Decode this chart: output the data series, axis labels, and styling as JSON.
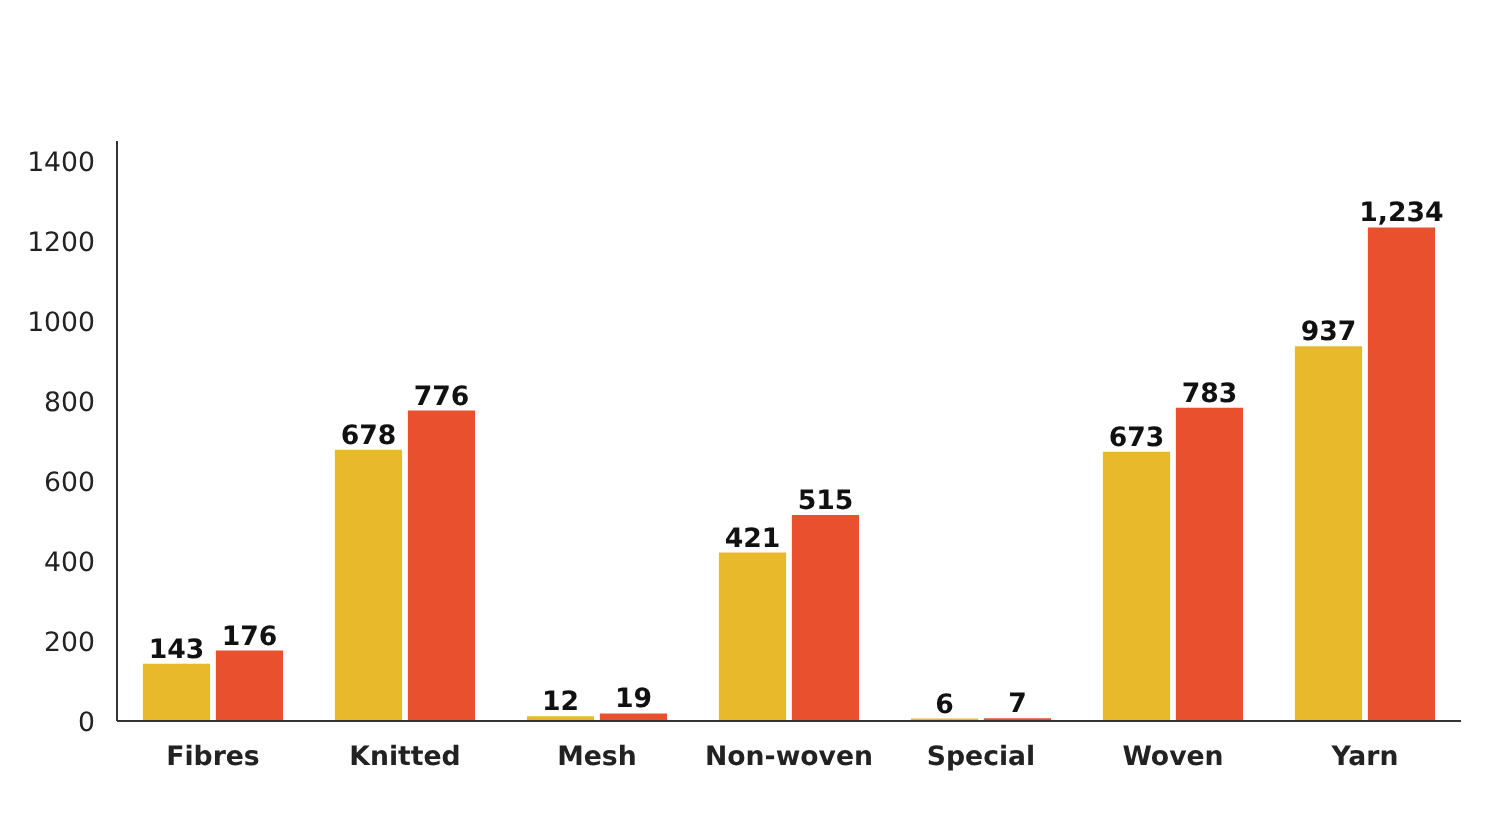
{
  "chart_data": {
    "type": "bar",
    "categories": [
      "Fibres",
      "Knitted",
      "Mesh",
      "Non-woven",
      "Special",
      "Woven",
      "Yarn"
    ],
    "series": [
      {
        "color": "#e8b92a",
        "values": [
          143,
          678,
          12,
          421,
          6,
          673,
          937
        ],
        "value_labels": [
          "143",
          "678",
          "12",
          "421",
          "6",
          "673",
          "937"
        ]
      },
      {
        "color": "#e8502e",
        "values": [
          176,
          776,
          19,
          515,
          7,
          783,
          1234
        ],
        "value_labels": [
          "176",
          "776",
          "19",
          "515",
          "7",
          "783",
          "1,234"
        ]
      }
    ],
    "ylim": [
      0,
      1450
    ],
    "yticks": [
      0,
      200,
      400,
      600,
      800,
      1000,
      1200,
      1400
    ],
    "grid": false
  }
}
